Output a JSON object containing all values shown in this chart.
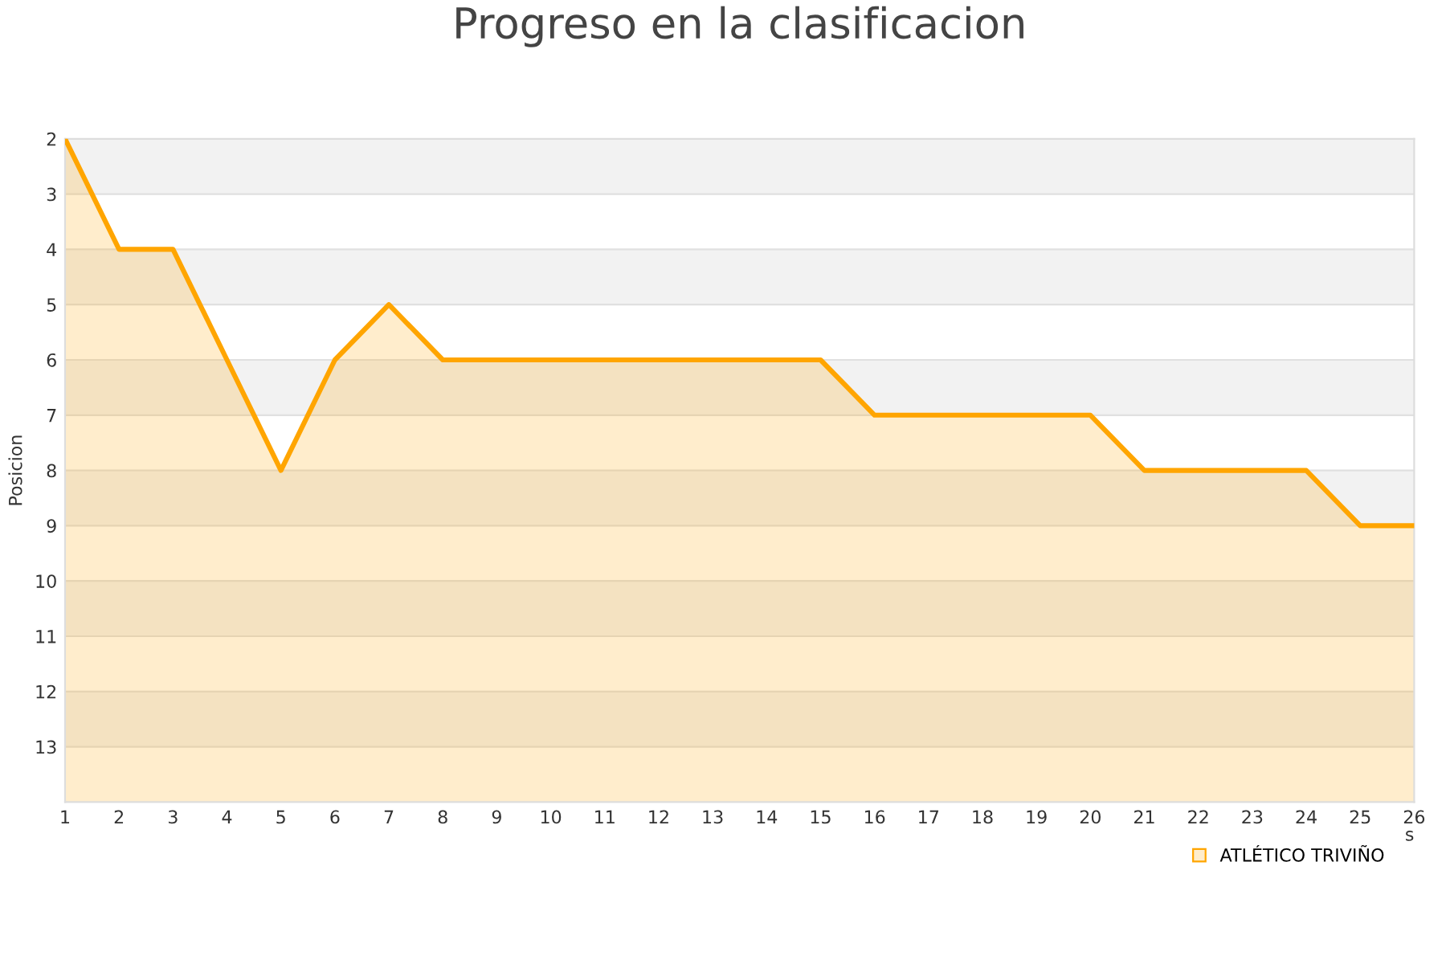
{
  "chart_data": {
    "type": "area",
    "title": "Progreso en la clasificacion",
    "xlabel": "s",
    "ylabel": "Posicion",
    "x": [
      1,
      2,
      3,
      4,
      5,
      6,
      7,
      8,
      9,
      10,
      11,
      12,
      13,
      14,
      15,
      16,
      17,
      18,
      19,
      20,
      21,
      22,
      23,
      24,
      25,
      26
    ],
    "series": [
      {
        "name": "ATLÉTICO TRIVIÑO",
        "color": "#ffa500",
        "values": [
          2,
          4,
          4,
          6,
          8,
          6,
          5,
          6,
          6,
          6,
          6,
          6,
          6,
          6,
          6,
          7,
          7,
          7,
          7,
          7,
          8,
          8,
          8,
          8,
          9,
          9
        ]
      }
    ],
    "xlim": [
      1,
      26
    ],
    "xticks": [
      1,
      2,
      3,
      4,
      5,
      6,
      7,
      8,
      9,
      10,
      11,
      12,
      13,
      14,
      15,
      16,
      17,
      18,
      19,
      20,
      21,
      22,
      23,
      24,
      25,
      26
    ],
    "ylim": [
      14,
      2
    ],
    "yticks": [
      2,
      3,
      4,
      5,
      6,
      7,
      8,
      9,
      10,
      11,
      12,
      13
    ],
    "bands": [
      {
        "axis": "y",
        "from": 2,
        "to": 3,
        "color": "#f2f2f2"
      },
      {
        "axis": "y",
        "from": 4,
        "to": 5,
        "color": "#f2f2f2"
      },
      {
        "axis": "y",
        "from": 6,
        "to": 7,
        "color": "#f2f2f2"
      },
      {
        "axis": "y",
        "from": 8,
        "to": 9,
        "color": "#f2f2f2"
      },
      {
        "axis": "y",
        "from": 10,
        "to": 11,
        "color": "#f2f2f2"
      },
      {
        "axis": "y",
        "from": 12,
        "to": 13,
        "color": "#f2f2f2"
      }
    ],
    "grid": "y",
    "legend": "bottom right",
    "marker": "none",
    "line_style": "solid"
  }
}
